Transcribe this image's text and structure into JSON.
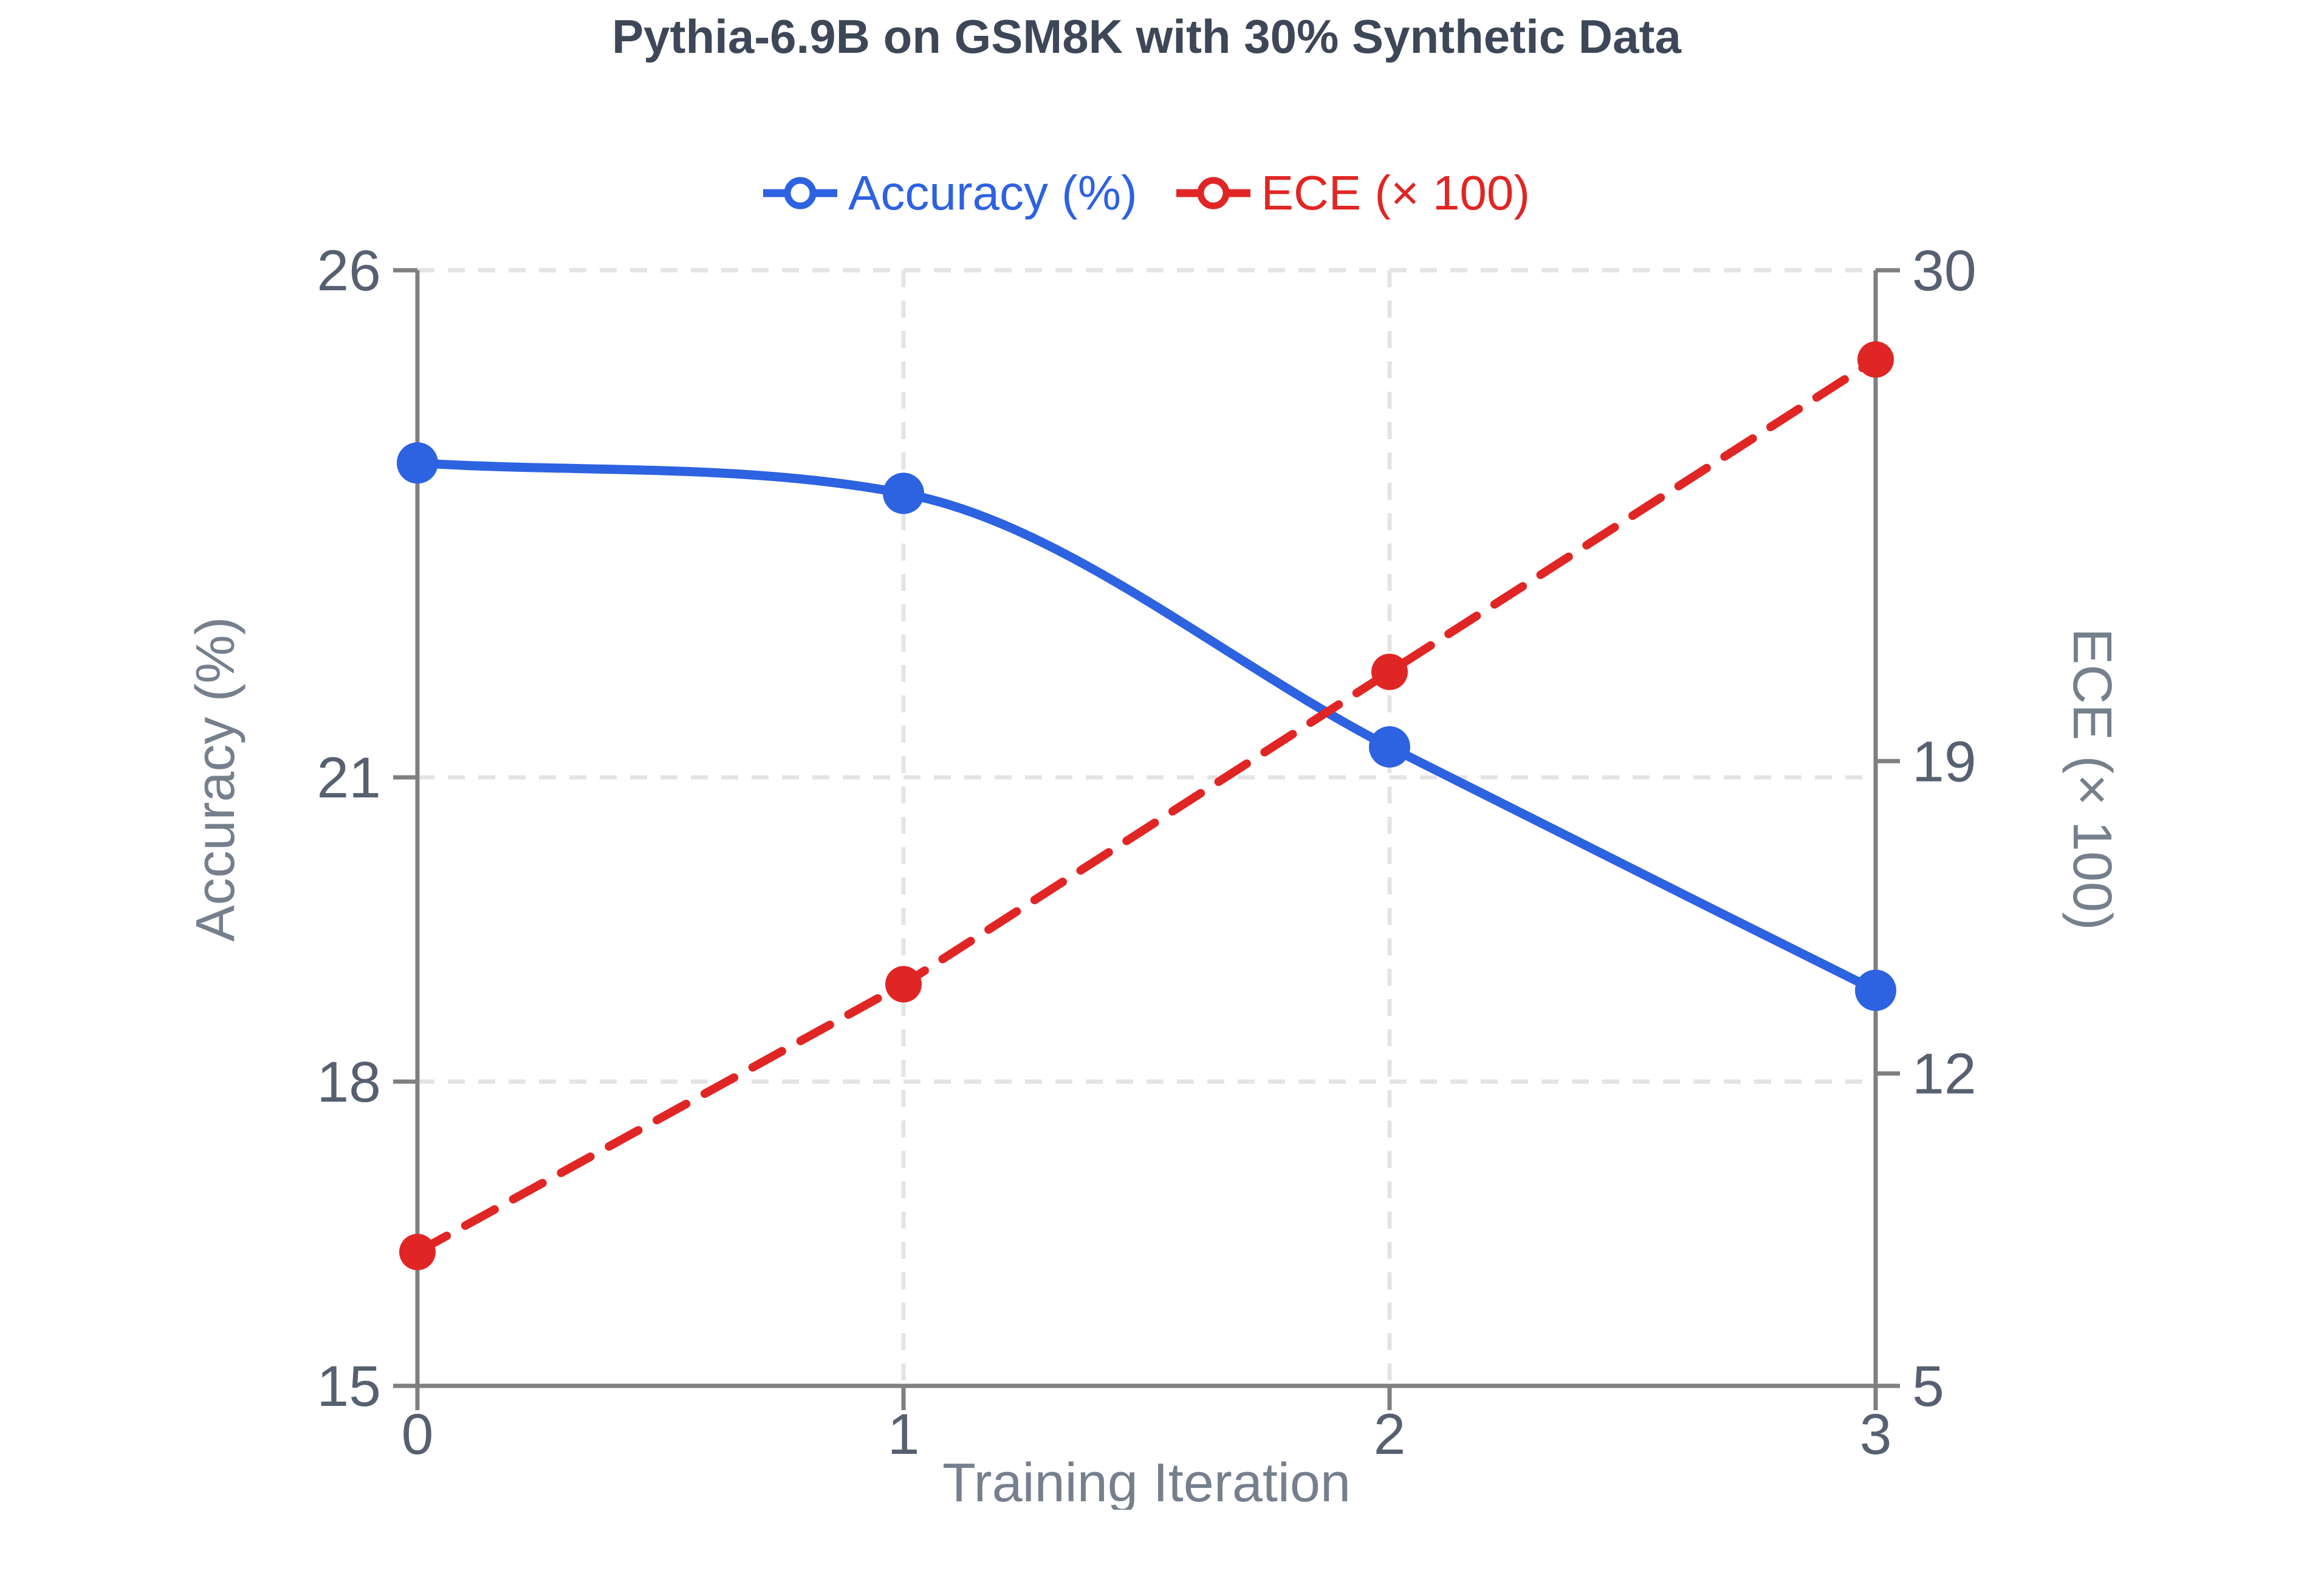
{
  "title": "Pythia-6.9B on GSM8K with 30% Synthetic Data",
  "legend": [
    {
      "label": "Accuracy (%)",
      "color": "#2d62e0",
      "marker": "line-circle-icon"
    },
    {
      "label": "ECE (× 100)",
      "color": "#e02624",
      "marker": "line-circle-icon"
    }
  ],
  "colors": {
    "title_text": "#3d4757",
    "tick_text": "#566070",
    "axis_title_text": "#76808d",
    "axis_line": "#7f7f7f",
    "gridline": "#e4e4e4",
    "accuracy_series": "#2d62e0",
    "ece_series": "#e02624",
    "background": "#ffffff"
  },
  "chart_data": {
    "type": "line",
    "title": "Pythia-6.9B on GSM8K with 30% Synthetic Data",
    "x": [
      0,
      1,
      2,
      3
    ],
    "x_tick_labels": [
      "0",
      "1",
      "2",
      "3"
    ],
    "xlabel": "Training Iteration",
    "left_axis": {
      "label": "Accuracy (%)",
      "ticks": [
        15,
        18,
        21,
        26
      ],
      "range": [
        15,
        26
      ]
    },
    "right_axis": {
      "label": "ECE (× 100)",
      "ticks": [
        5,
        12,
        19,
        30
      ],
      "range": [
        5,
        30
      ]
    },
    "series": [
      {
        "name": "Accuracy (%)",
        "axis": "left",
        "values": [
          24.1,
          23.8,
          21.3,
          18.9
        ],
        "color": "#2d62e0",
        "line_style": "solid",
        "smooth": true,
        "marker_radius": 34,
        "line_width": 15
      },
      {
        "name": "ECE (× 100)",
        "axis": "right",
        "values": [
          8,
          14,
          21,
          28
        ],
        "color": "#e02624",
        "line_style": "dashed",
        "smooth": false,
        "marker_radius": 30,
        "line_width": 14
      }
    ],
    "grid": true,
    "legend_position": "top-center"
  }
}
